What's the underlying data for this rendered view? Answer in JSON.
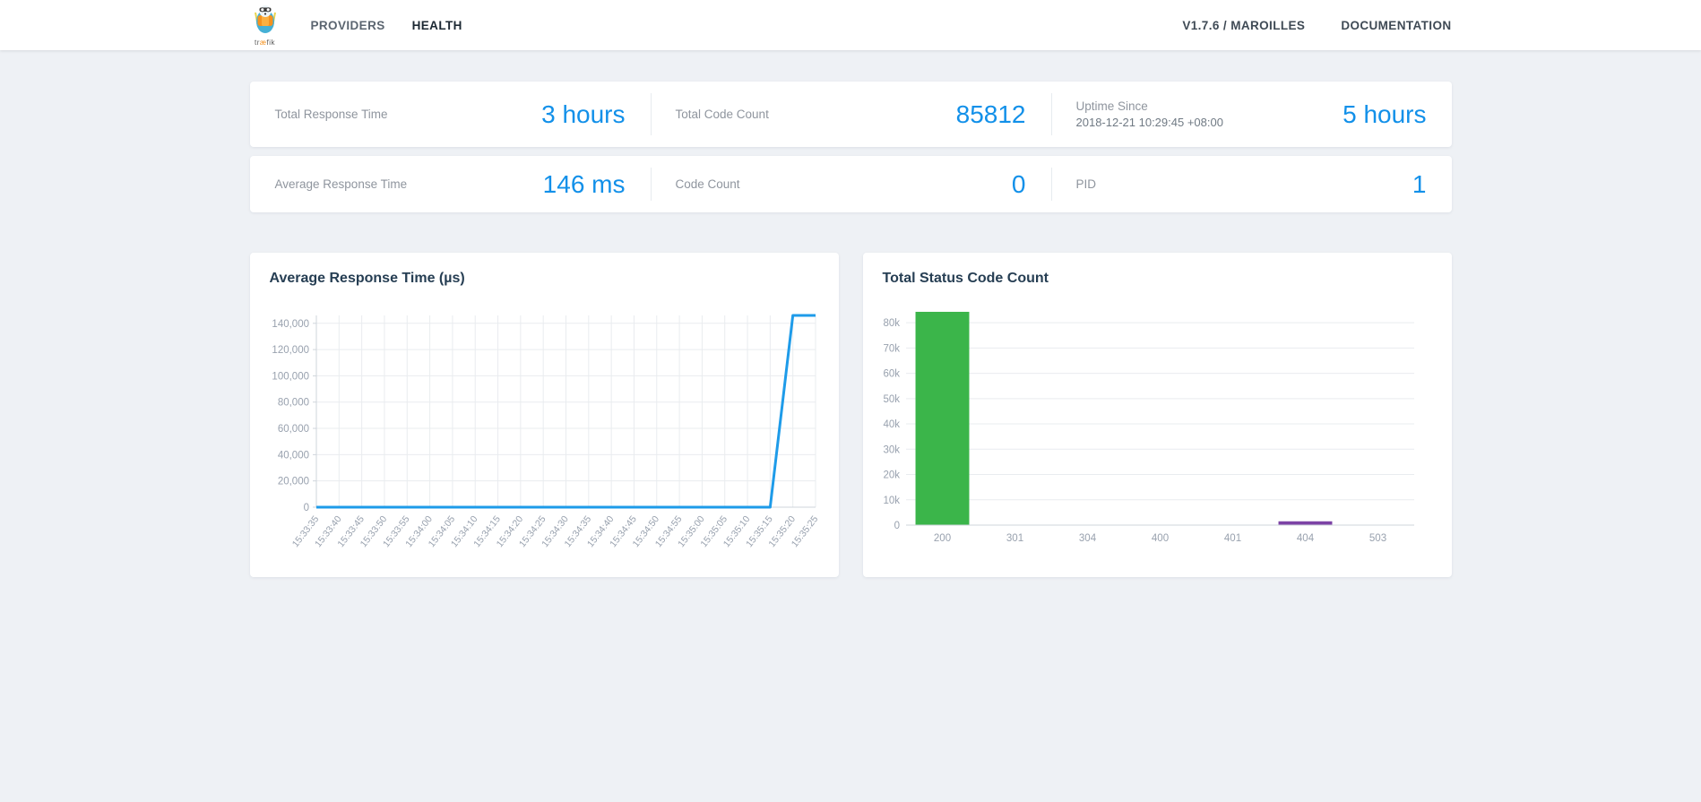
{
  "navbar": {
    "logo_alt": "traefik",
    "logo_word": "træfik",
    "links": [
      {
        "label": "PROVIDERS",
        "active": false
      },
      {
        "label": "HEALTH",
        "active": true
      }
    ],
    "right_links": [
      {
        "label": "V1.7.6 / MAROILLES"
      },
      {
        "label": "DOCUMENTATION"
      }
    ]
  },
  "stats": {
    "rows": [
      [
        {
          "label": "Total Response Time",
          "value": "3 hours"
        },
        {
          "label": "Total Code Count",
          "value": "85812"
        },
        {
          "label": "Uptime Since",
          "sublabel": "2018-12-21 10:29:45 +08:00",
          "value": "5 hours"
        }
      ],
      [
        {
          "label": "Average Response Time",
          "value": "146 ms"
        },
        {
          "label": "Code Count",
          "value": "0"
        },
        {
          "label": "PID",
          "value": "1"
        }
      ]
    ]
  },
  "colors": {
    "accent_blue": "#1290e9",
    "line_blue": "#1e9be9",
    "bar_green": "#3bb54a",
    "bar_purple": "#7c43a5",
    "grid": "#e9ecef",
    "axis": "#cfd5db",
    "tick_text": "#98a1ae"
  },
  "chart_data": [
    {
      "type": "line",
      "title": "Average Response Time (µs)",
      "x": [
        "15:33:35",
        "15:33:40",
        "15:33:45",
        "15:33:50",
        "15:33:55",
        "15:34:00",
        "15:34:05",
        "15:34:10",
        "15:34:15",
        "15:34:20",
        "15:34:25",
        "15:34:30",
        "15:34:35",
        "15:34:40",
        "15:34:45",
        "15:34:50",
        "15:34:55",
        "15:35:00",
        "15:35:05",
        "15:35:10",
        "15:35:15",
        "15:35:20",
        "15:35:25"
      ],
      "values": [
        0,
        0,
        0,
        0,
        0,
        0,
        0,
        0,
        0,
        0,
        0,
        0,
        0,
        0,
        0,
        0,
        0,
        0,
        0,
        0,
        0,
        146000,
        146000
      ],
      "ylim": [
        0,
        146000
      ],
      "yticks": [
        0,
        20000,
        40000,
        60000,
        80000,
        100000,
        120000,
        140000
      ],
      "ytick_labels": [
        "0",
        "20,000",
        "40,000",
        "60,000",
        "80,000",
        "100,000",
        "120,000",
        "140,000"
      ],
      "grid": "both",
      "legend": "none",
      "line_color": "#1e9be9"
    },
    {
      "type": "bar",
      "title": "Total Status Code Count",
      "categories": [
        "200",
        "301",
        "304",
        "400",
        "401",
        "404",
        "503"
      ],
      "values": [
        84300,
        0,
        0,
        0,
        0,
        1500,
        0
      ],
      "bar_colors": [
        "#3bb54a",
        "#9e9e9e",
        "#9e9e9e",
        "#9e9e9e",
        "#9e9e9e",
        "#7c43a5",
        "#9e9e9e"
      ],
      "ylim": [
        0,
        85000
      ],
      "yticks": [
        0,
        10000,
        20000,
        30000,
        40000,
        50000,
        60000,
        70000,
        80000
      ],
      "ytick_labels": [
        "0",
        "10k",
        "20k",
        "30k",
        "40k",
        "50k",
        "60k",
        "70k",
        "80k"
      ],
      "grid": "horizontal",
      "legend": "none"
    }
  ]
}
